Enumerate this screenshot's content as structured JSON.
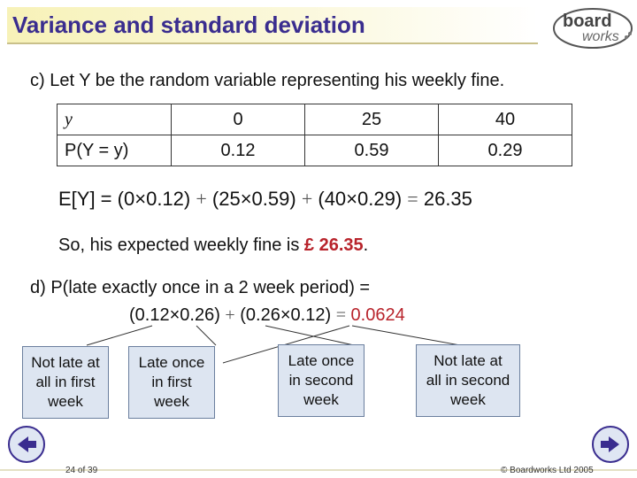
{
  "header": {
    "title": "Variance and standard deviation",
    "logo_top": "board",
    "logo_bottom": "works"
  },
  "part_c": {
    "intro": "c) Let Y be the random variable representing his weekly fine.",
    "table": {
      "row1": [
        "y",
        "0",
        "25",
        "40"
      ],
      "row2": [
        "P(Y = y)",
        "0.12",
        "0.59",
        "0.29"
      ]
    },
    "expectation": {
      "lhs": "E[Y] =",
      "t1": "(0×0.12)",
      "t2": "(25×0.59)",
      "t3": "(40×0.29)",
      "result": "26.35"
    },
    "conclusion_prefix": "So, his expected weekly fine is ",
    "conclusion_value": "£ 26.35",
    "conclusion_suffix": "."
  },
  "part_d": {
    "question": "d) P(late exactly once in a 2 week period) =",
    "t1": "(0.12×0.26)",
    "t2": "(0.26×0.12)",
    "result": "0.0624",
    "boxes": [
      [
        "Not late at",
        "all in first",
        "week"
      ],
      [
        "Late once",
        "in first",
        "week"
      ],
      [
        "Late once",
        "in second",
        "week"
      ],
      [
        "Not late at",
        "all in second",
        "week"
      ]
    ]
  },
  "footer": {
    "page": "24 of 39",
    "copyright": "© Boardworks Ltd 2005"
  },
  "colors": {
    "title": "#3a2d8f",
    "accent": "#b8232b",
    "box_fill": "#dde5f1"
  }
}
